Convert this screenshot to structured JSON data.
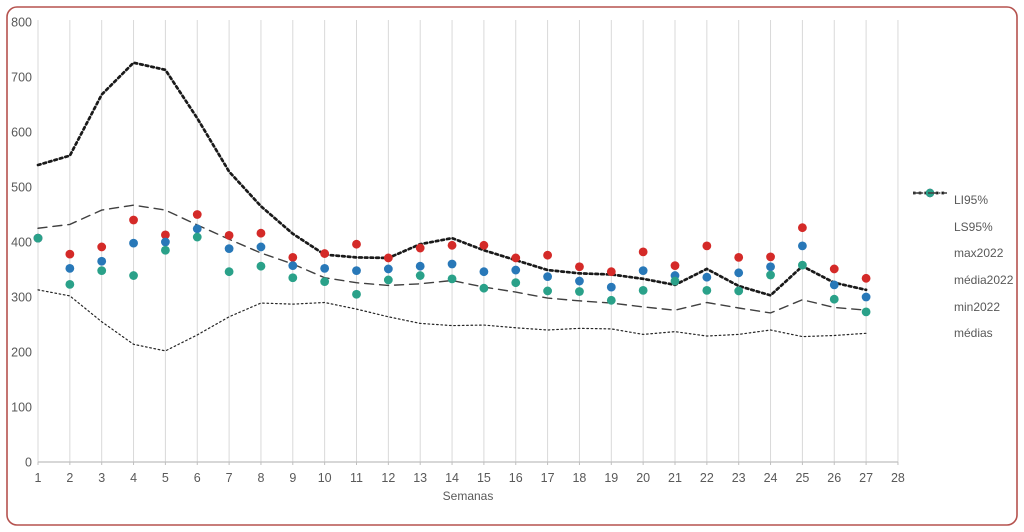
{
  "style": {
    "border_color": "#B5524E",
    "grid_color": "#D9D9D9",
    "axis_color": "#BFBFBF",
    "label_color": "#595959",
    "background": "#FFFFFF"
  },
  "chart_data": {
    "type": "line",
    "title": "",
    "xlabel": "Semanas",
    "ylabel": "",
    "xlim": [
      1,
      28
    ],
    "ylim": [
      0,
      800
    ],
    "x_ticks": [
      1,
      2,
      3,
      4,
      5,
      6,
      7,
      8,
      9,
      10,
      11,
      12,
      13,
      14,
      15,
      16,
      17,
      18,
      19,
      20,
      21,
      22,
      23,
      24,
      25,
      26,
      27,
      28
    ],
    "y_ticks": [
      0,
      100,
      200,
      300,
      400,
      500,
      600,
      700,
      800
    ],
    "grid": "vertical-only",
    "legend_position": "right",
    "x": [
      1,
      2,
      3,
      4,
      5,
      6,
      7,
      8,
      9,
      10,
      11,
      12,
      13,
      14,
      15,
      16,
      17,
      18,
      19,
      20,
      21,
      22,
      23,
      24,
      25,
      26,
      27
    ],
    "series": [
      {
        "name": "LI95%",
        "kind": "line",
        "style": "dotted-thin",
        "color": "#262626",
        "values": [
          313,
          302,
          255,
          214,
          202,
          231,
          264,
          289,
          287,
          290,
          278,
          264,
          252,
          248,
          249,
          244,
          240,
          243,
          242,
          232,
          237,
          229,
          232,
          240,
          228,
          230,
          234
        ]
      },
      {
        "name": "LS95%",
        "kind": "line",
        "style": "dotted-bold",
        "color": "#1A1A1A",
        "values": [
          540,
          557,
          668,
          726,
          713,
          625,
          528,
          465,
          415,
          377,
          372,
          371,
          396,
          407,
          385,
          367,
          349,
          343,
          341,
          333,
          322,
          351,
          320,
          303,
          356,
          326,
          313
        ]
      },
      {
        "name": "max2022",
        "kind": "scatter",
        "style": "dot",
        "color": "#D42A28",
        "values": [
          407,
          378,
          391,
          440,
          413,
          450,
          412,
          416,
          372,
          379,
          396,
          371,
          389,
          394,
          394,
          371,
          376,
          355,
          346,
          382,
          357,
          393,
          372,
          373,
          426,
          351,
          334
        ]
      },
      {
        "name": "média2022",
        "kind": "scatter",
        "style": "dot",
        "color": "#2878B8",
        "values": [
          407,
          352,
          365,
          398,
          400,
          424,
          388,
          391,
          357,
          352,
          348,
          351,
          356,
          360,
          346,
          349,
          337,
          329,
          318,
          348,
          339,
          336,
          344,
          355,
          393,
          322,
          300
        ]
      },
      {
        "name": "min2022",
        "kind": "scatter",
        "style": "dot",
        "color": "#2AA189",
        "values": [
          407,
          323,
          348,
          339,
          385,
          409,
          346,
          356,
          335,
          328,
          305,
          331,
          339,
          333,
          316,
          326,
          311,
          310,
          294,
          312,
          329,
          312,
          311,
          340,
          358,
          296,
          273
        ]
      },
      {
        "name": "médias",
        "kind": "line",
        "style": "dashed",
        "color": "#404040",
        "values": [
          425,
          432,
          458,
          467,
          458,
          431,
          405,
          380,
          360,
          335,
          326,
          321,
          324,
          330,
          318,
          309,
          298,
          293,
          289,
          282,
          276,
          290,
          280,
          271,
          295,
          281,
          276
        ]
      }
    ]
  }
}
